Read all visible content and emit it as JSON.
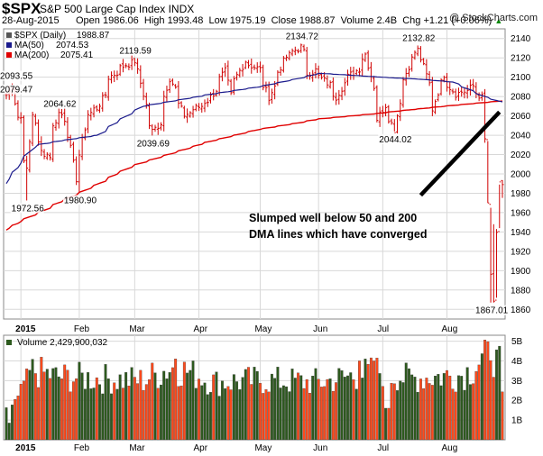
{
  "header": {
    "symbol": "$SPX",
    "name": "S&P 500 Large Cap Index",
    "exchange": "INDX",
    "date": "28-Aug-2015",
    "open_label": "Open",
    "open": "1986.06",
    "high_label": "High",
    "high": "1993.48",
    "low_label": "Low",
    "low": "1975.19",
    "close_label": "Close",
    "close": "1988.87",
    "volume_label": "Volume",
    "volume": "2.4B",
    "chg_label": "Chg",
    "chg": "+1.21 (+0.06%)",
    "chg_arrow": "▲",
    "credit": "@ StockCharts.com"
  },
  "colors": {
    "price": "#d00000",
    "ma50": "#1a1a8c",
    "ma200": "#e00000",
    "vol_up": "#2d5a1e",
    "vol_down": "#ff4a1c",
    "grid": "#d8d8d8",
    "bg": "#ffffff"
  },
  "chart_data": [
    {
      "type": "line",
      "title": "$SPX (Daily) 1988.87",
      "legend": [
        {
          "name": "$SPX (Daily)",
          "value": "1988.87"
        },
        {
          "name": "MA(50)",
          "value": "2074.53"
        },
        {
          "name": "MA(200)",
          "value": "2075.41"
        }
      ],
      "legend_position": "top-left",
      "y_ticks": [
        1860,
        1880,
        1900,
        1920,
        1940,
        1960,
        1980,
        2000,
        2020,
        2040,
        2060,
        2080,
        2100,
        2120,
        2140
      ],
      "ylim": [
        1850,
        2150
      ],
      "x_ticks": [
        "2015",
        "Feb",
        "Mar",
        "Apr",
        "May",
        "Jun",
        "Jul",
        "Aug"
      ],
      "grid": true,
      "anchors": [
        [
          "2014-12-24",
          2082
        ],
        [
          "2014-12-29",
          2090
        ],
        [
          "2014-12-31",
          2059
        ],
        [
          "2015-01-02",
          2058
        ],
        [
          "2015-01-06",
          2003
        ],
        [
          "2015-01-08",
          2062
        ],
        [
          "2015-01-13",
          2023
        ],
        [
          "2015-01-16",
          2019
        ],
        [
          "2015-01-22",
          2063
        ],
        [
          "2015-01-26",
          2057
        ],
        [
          "2015-01-30",
          1995
        ],
        [
          "2015-02-02",
          2020
        ],
        [
          "2015-02-05",
          2062
        ],
        [
          "2015-02-10",
          2068
        ],
        [
          "2015-02-17",
          2100
        ],
        [
          "2015-02-25",
          2113
        ],
        [
          "2015-03-02",
          2117
        ],
        [
          "2015-03-06",
          2071
        ],
        [
          "2015-03-10",
          2044
        ],
        [
          "2015-03-13",
          2053
        ],
        [
          "2015-03-18",
          2099
        ],
        [
          "2015-03-25",
          2061
        ],
        [
          "2015-03-31",
          2068
        ],
        [
          "2015-04-07",
          2076
        ],
        [
          "2015-04-15",
          2106
        ],
        [
          "2015-04-17",
          2081
        ],
        [
          "2015-04-24",
          2117
        ],
        [
          "2015-05-01",
          2108
        ],
        [
          "2015-05-06",
          2080
        ],
        [
          "2015-05-14",
          2121
        ],
        [
          "2015-05-21",
          2131
        ],
        [
          "2015-05-26",
          2104
        ],
        [
          "2015-05-29",
          2107
        ],
        [
          "2015-06-05",
          2092
        ],
        [
          "2015-06-09",
          2080
        ],
        [
          "2015-06-12",
          2094
        ],
        [
          "2015-06-19",
          2109
        ],
        [
          "2015-06-23",
          2124
        ],
        [
          "2015-06-29",
          2057
        ],
        [
          "2015-07-03",
          2076
        ],
        [
          "2015-07-08",
          2046
        ],
        [
          "2015-07-10",
          2076
        ],
        [
          "2015-07-17",
          2126
        ],
        [
          "2015-07-20",
          2128
        ],
        [
          "2015-07-27",
          2067
        ],
        [
          "2015-07-31",
          2103
        ],
        [
          "2015-08-06",
          2083
        ],
        [
          "2015-08-12",
          2086
        ],
        [
          "2015-08-14",
          2091
        ],
        [
          "2015-08-19",
          2079
        ],
        [
          "2015-08-20",
          2035
        ],
        [
          "2015-08-21",
          1970
        ],
        [
          "2015-08-24",
          1893
        ],
        [
          "2015-08-25",
          1867
        ],
        [
          "2015-08-26",
          1940
        ],
        [
          "2015-08-27",
          1988
        ],
        [
          "2015-08-28",
          1989
        ]
      ],
      "ma50_anchors": [
        [
          "2014-12-24",
          1990
        ],
        [
          "2015-01-10",
          2030
        ],
        [
          "2015-02-10",
          2040
        ],
        [
          "2015-03-05",
          2070
        ],
        [
          "2015-04-01",
          2080
        ],
        [
          "2015-05-01",
          2090
        ],
        [
          "2015-06-01",
          2104
        ],
        [
          "2015-07-01",
          2100
        ],
        [
          "2015-07-20",
          2098
        ],
        [
          "2015-08-05",
          2095
        ],
        [
          "2015-08-20",
          2080
        ],
        [
          "2015-08-28",
          2074.53
        ]
      ],
      "ma200_anchors": [
        [
          "2014-12-24",
          1942
        ],
        [
          "2015-02-01",
          1980
        ],
        [
          "2015-03-01",
          2009
        ],
        [
          "2015-04-01",
          2030
        ],
        [
          "2015-05-01",
          2046
        ],
        [
          "2015-06-01",
          2057
        ],
        [
          "2015-07-01",
          2063
        ],
        [
          "2015-08-01",
          2070
        ],
        [
          "2015-08-28",
          2075.41
        ]
      ],
      "annotations": [
        {
          "text": "2079.47",
          "date": "2014-12-24",
          "value": 2079.47
        },
        {
          "text": "2093.55",
          "date": "2014-12-29",
          "value": 2093.55
        },
        {
          "text": "1972.56",
          "date": "2015-01-06",
          "value": 1972.56
        },
        {
          "text": "2064.62",
          "date": "2015-01-22",
          "value": 2064.62
        },
        {
          "text": "1980.90",
          "date": "2015-02-02",
          "value": 1980.9
        },
        {
          "text": "2119.59",
          "date": "2015-03-02",
          "value": 2119.59
        },
        {
          "text": "2039.69",
          "date": "2015-03-10",
          "value": 2039.69
        },
        {
          "text": "2134.72",
          "date": "2015-05-21",
          "value": 2134.72
        },
        {
          "text": "2132.82",
          "date": "2015-07-20",
          "value": 2132.82
        },
        {
          "text": "2044.02",
          "date": "2015-07-08",
          "value": 2044.02
        },
        {
          "text": "1867.01",
          "date": "2015-08-24",
          "value": 1867.01
        }
      ],
      "note": {
        "lines": [
          "Slumped well below 50 and 200",
          "DMA lines which have converged"
        ]
      },
      "note_line": {
        "from": [
          "2015-07-21",
          1978
        ],
        "to": [
          "2015-08-27",
          2064
        ]
      }
    },
    {
      "type": "bar",
      "title": "Volume 2,429,900,032",
      "y_ticks": [
        "1B",
        "2B",
        "3B",
        "4B",
        "5B"
      ],
      "ylim": [
        0,
        5.3
      ],
      "x_ticks": [
        "2015",
        "Feb",
        "Mar",
        "Apr",
        "May",
        "Jun",
        "Jul",
        "Aug"
      ],
      "unit": "billions of shares",
      "anchors": [
        [
          "2014-12-24",
          1.4
        ],
        [
          "2014-12-31",
          2.0
        ],
        [
          "2015-01-08",
          3.6
        ],
        [
          "2015-01-20",
          3.3
        ],
        [
          "2015-02-10",
          3.2
        ],
        [
          "2015-03-05",
          3.1
        ],
        [
          "2015-03-20",
          3.8
        ],
        [
          "2015-04-10",
          3.0
        ],
        [
          "2015-05-01",
          3.1
        ],
        [
          "2015-06-01",
          3.0
        ],
        [
          "2015-06-29",
          3.6
        ],
        [
          "2015-07-15",
          3.2
        ],
        [
          "2015-08-10",
          3.4
        ],
        [
          "2015-08-21",
          4.3
        ],
        [
          "2015-08-24",
          5.0
        ],
        [
          "2015-08-25",
          4.4
        ],
        [
          "2015-08-26",
          4.0
        ],
        [
          "2015-08-27",
          3.9
        ],
        [
          "2015-08-28",
          2.43
        ]
      ],
      "day_volumes": [
        [
          "2014-12-26",
          0.85
        ],
        [
          "2015-01-06",
          3.6
        ],
        [
          "2015-03-20",
          4.1
        ],
        [
          "2015-06-19",
          4.0
        ],
        [
          "2015-06-26",
          4.0
        ],
        [
          "2015-07-02",
          1.6
        ],
        [
          "2015-07-03",
          1.6
        ]
      ]
    }
  ]
}
